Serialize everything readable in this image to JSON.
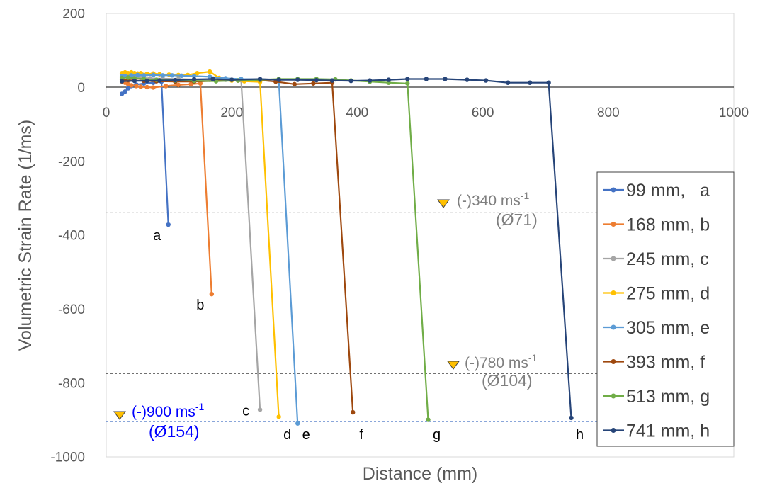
{
  "chart_data": {
    "type": "line",
    "xlabel": "Distance (mm)",
    "ylabel": "Volumetric Strain Rate (1/ms)",
    "xlim": [
      0,
      1000
    ],
    "ylim": [
      -1000,
      200
    ],
    "xticks": [
      "0",
      "200",
      "400",
      "600",
      "800",
      "1000"
    ],
    "yticks": [
      "200",
      "0",
      "-200",
      "-400",
      "-600",
      "-800",
      "-1000"
    ],
    "legend_position": "right",
    "series": [
      {
        "name": "99 mm,   a",
        "letter": "a",
        "color": "#4472c4",
        "x": [
          25,
          30,
          35,
          40,
          48,
          60,
          75,
          88,
          99
        ],
        "y": [
          -18,
          -12,
          -3,
          3,
          7,
          10,
          12,
          15,
          -372
        ]
      },
      {
        "name": "168 mm, b",
        "letter": "b",
        "color": "#ed7d31",
        "x": [
          25,
          30,
          35,
          40,
          48,
          55,
          65,
          75,
          95,
          115,
          135,
          150,
          168
        ],
        "y": [
          15,
          12,
          8,
          5,
          3,
          1,
          0,
          -1,
          3,
          6,
          8,
          10,
          -560
        ]
      },
      {
        "name": "245 mm, c",
        "letter": "c",
        "color": "#a5a5a5",
        "x": [
          25,
          35,
          45,
          55,
          70,
          90,
          115,
          140,
          165,
          190,
          215,
          245
        ],
        "y": [
          25,
          27,
          26,
          25,
          24,
          23,
          22,
          21,
          20,
          20,
          19,
          -873
        ]
      },
      {
        "name": "275 mm, d",
        "letter": "d",
        "color": "#ffc000",
        "x": [
          25,
          30,
          35,
          40,
          45,
          50,
          55,
          65,
          75,
          85,
          100,
          115,
          130,
          145,
          165,
          180,
          200,
          220,
          245,
          275
        ],
        "y": [
          38,
          40,
          38,
          40,
          38,
          37,
          38,
          36,
          37,
          35,
          34,
          33,
          33,
          38,
          42,
          25,
          18,
          16,
          14,
          -892
        ]
      },
      {
        "name": "305 mm, e",
        "letter": "e",
        "color": "#5b9bd5",
        "x": [
          25,
          30,
          40,
          50,
          60,
          75,
          90,
          105,
          120,
          140,
          165,
          190,
          215,
          245,
          275,
          305
        ],
        "y": [
          30,
          30,
          32,
          33,
          32,
          33,
          32,
          32,
          31,
          30,
          28,
          24,
          22,
          21,
          20,
          -910
        ]
      },
      {
        "name": "393 mm, f",
        "letter": "f",
        "color": "#9e480e",
        "x": [
          25,
          35,
          45,
          60,
          80,
          110,
          140,
          175,
          210,
          245,
          270,
          300,
          330,
          360,
          393
        ],
        "y": [
          20,
          19,
          18,
          17,
          16,
          15,
          15,
          17,
          18,
          19,
          15,
          8,
          10,
          12,
          -880
        ]
      },
      {
        "name": "513 mm, g",
        "letter": "g",
        "color": "#70ad47",
        "x": [
          25,
          35,
          45,
          60,
          80,
          110,
          140,
          175,
          210,
          245,
          275,
          305,
          335,
          365,
          390,
          420,
          450,
          480,
          513
        ],
        "y": [
          25,
          26,
          24,
          22,
          20,
          18,
          17,
          16,
          18,
          20,
          22,
          22,
          22,
          21,
          18,
          15,
          12,
          10,
          -900
        ]
      },
      {
        "name": "741 mm, h",
        "letter": "h",
        "color": "#264478",
        "x": [
          25,
          45,
          65,
          85,
          110,
          140,
          170,
          200,
          245,
          275,
          305,
          335,
          360,
          390,
          420,
          450,
          480,
          510,
          540,
          575,
          605,
          640,
          675,
          705,
          741
        ],
        "y": [
          16,
          17,
          17,
          18,
          19,
          21,
          22,
          20,
          22,
          20,
          20,
          19,
          18,
          17,
          18,
          20,
          22,
          22,
          22,
          20,
          18,
          12,
          12,
          12,
          -895
        ]
      }
    ],
    "annotations": [
      {
        "id": "a340",
        "y_line": -340,
        "line_color": "#404040",
        "marker_x": 540,
        "marker_y": -318,
        "text_main": "(-)340 ms",
        "text_sup": "-1",
        "text_sub": "(Ø71)",
        "color": "#7f7f7f"
      },
      {
        "id": "a780",
        "y_line": -775,
        "line_color": "#404040",
        "marker_x": 555,
        "marker_y": -752,
        "text_main": "(-)780 ms",
        "text_sup": "-1",
        "text_sub": "(Ø104)",
        "color": "#7f7f7f"
      },
      {
        "id": "a900",
        "y_line": -905,
        "line_color": "#4472c4",
        "marker_x": 25,
        "marker_y": -890,
        "text_main": "(-)900 ms",
        "text_sup": "-1",
        "text_sub": "(Ø154)",
        "color": "#0000ff"
      }
    ]
  }
}
